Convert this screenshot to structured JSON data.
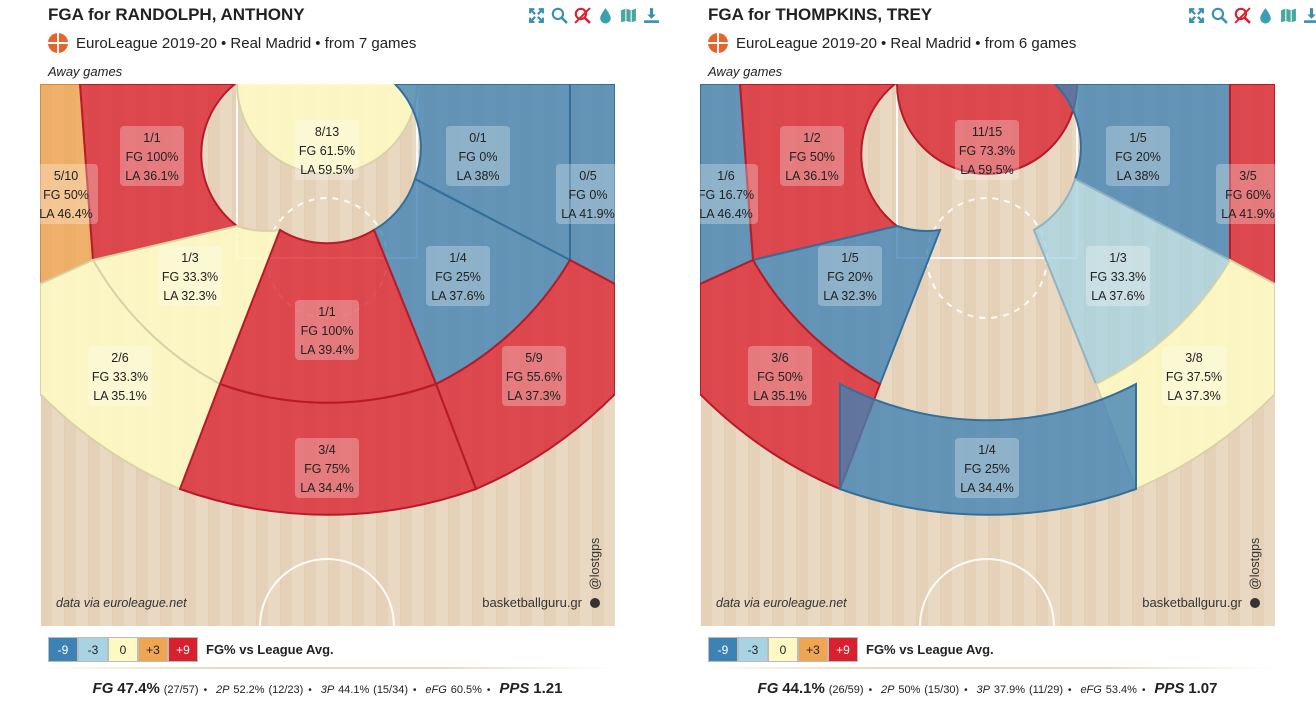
{
  "legend": {
    "items": [
      {
        "label": "-9",
        "color": "#3d82b5",
        "text_color": "#ffffff"
      },
      {
        "label": "-3",
        "color": "#a7d3e3",
        "text_color": "#222222"
      },
      {
        "label": "0",
        "color": "#fdf8c4",
        "text_color": "#222222"
      },
      {
        "label": "+3",
        "color": "#f0a552",
        "text_color": "#222222"
      },
      {
        "label": "+9",
        "color": "#d8202e",
        "text_color": "#ffffff"
      }
    ],
    "caption": "FG% vs League Avg."
  },
  "court_texts": {
    "source": "data via euroleague.net",
    "brand": "basketballguru.gr",
    "handle": "@lostgps"
  },
  "icons": [
    "fullscreen-icon",
    "search-icon",
    "no-search-icon",
    "drop-icon",
    "map-icon",
    "download-icon"
  ],
  "chart_data": [
    {
      "type": "heatmap",
      "title": "FGA for RANDOLPH, ANTHONY",
      "subtitle": {
        "competition": "EuroLeague 2019-20",
        "team": "Real Madrid",
        "games": "from 7 games"
      },
      "filter": "Away games",
      "zones": [
        {
          "id": "left-corner-3",
          "made_att": "5/10",
          "fg": "FG 50%",
          "la": "LA 46.4%",
          "color": "#f0a552"
        },
        {
          "id": "left-mid-upper",
          "made_att": "1/1",
          "fg": "FG 100%",
          "la": "LA 36.1%",
          "color": "#d8202e"
        },
        {
          "id": "restricted-area",
          "made_att": "8/13",
          "fg": "FG 61.5%",
          "la": "LA 59.5%",
          "color": "#fdf8c4"
        },
        {
          "id": "right-mid-upper",
          "made_att": "0/1",
          "fg": "FG 0%",
          "la": "LA 38%",
          "color": "#3d82b5"
        },
        {
          "id": "right-corner-3",
          "made_att": "0/5",
          "fg": "FG 0%",
          "la": "LA 41.9%",
          "color": "#3d82b5"
        },
        {
          "id": "left-mid-lower",
          "made_att": "1/3",
          "fg": "FG 33.3%",
          "la": "LA 32.3%",
          "color": "#fdf8c4"
        },
        {
          "id": "right-mid-lower",
          "made_att": "1/4",
          "fg": "FG 25%",
          "la": "LA 37.6%",
          "color": "#3d82b5"
        },
        {
          "id": "paint-mid",
          "made_att": "1/1",
          "fg": "FG 100%",
          "la": "LA 39.4%",
          "color": "#d8202e"
        },
        {
          "id": "left-wing-3",
          "made_att": "2/6",
          "fg": "FG 33.3%",
          "la": "LA 35.1%",
          "color": "#fdf8c4"
        },
        {
          "id": "right-wing-3",
          "made_att": "5/9",
          "fg": "FG 55.6%",
          "la": "LA 37.3%",
          "color": "#d8202e"
        },
        {
          "id": "top-3",
          "made_att": "3/4",
          "fg": "FG 75%",
          "la": "LA 34.4%",
          "color": "#d8202e"
        }
      ],
      "summary": {
        "fg": "47.4%",
        "fg_n": "(27/57)",
        "p2": "52.2%",
        "p2_n": "(12/23)",
        "p3": "44.1%",
        "p3_n": "(15/34)",
        "efg": "60.5%",
        "pps": "1.21"
      }
    },
    {
      "type": "heatmap",
      "title": "FGA for THOMPKINS, TREY",
      "subtitle": {
        "competition": "EuroLeague 2019-20",
        "team": "Real Madrid",
        "games": "from 6 games"
      },
      "filter": "Away games",
      "zones": [
        {
          "id": "left-corner-3",
          "made_att": "1/6",
          "fg": "FG 16.7%",
          "la": "LA 46.4%",
          "color": "#3d82b5"
        },
        {
          "id": "left-mid-upper",
          "made_att": "1/2",
          "fg": "FG 50%",
          "la": "LA 36.1%",
          "color": "#d8202e"
        },
        {
          "id": "restricted-area",
          "made_att": "11/15",
          "fg": "FG 73.3%",
          "la": "LA 59.5%",
          "color": "#d8202e"
        },
        {
          "id": "right-mid-upper",
          "made_att": "1/5",
          "fg": "FG 20%",
          "la": "LA 38%",
          "color": "#3d82b5"
        },
        {
          "id": "right-corner-3",
          "made_att": "3/5",
          "fg": "FG 60%",
          "la": "LA 41.9%",
          "color": "#d8202e"
        },
        {
          "id": "left-mid-lower",
          "made_att": "1/5",
          "fg": "FG 20%",
          "la": "LA 32.3%",
          "color": "#3d82b5"
        },
        {
          "id": "right-mid-lower",
          "made_att": "1/3",
          "fg": "FG 33.3%",
          "la": "LA 37.6%",
          "color": "#a7d3e3"
        },
        {
          "id": "left-wing-3",
          "made_att": "3/6",
          "fg": "FG 50%",
          "la": "LA 35.1%",
          "color": "#d8202e"
        },
        {
          "id": "right-wing-3",
          "made_att": "3/8",
          "fg": "FG 37.5%",
          "la": "LA 37.3%",
          "color": "#fdf8c4"
        },
        {
          "id": "top-3",
          "made_att": "1/4",
          "fg": "FG 25%",
          "la": "LA 34.4%",
          "color": "#3d82b5"
        }
      ],
      "summary": {
        "fg": "44.1%",
        "fg_n": "(26/59)",
        "p2": "50%",
        "p2_n": "(15/30)",
        "p3": "37.9%",
        "p3_n": "(11/29)",
        "efg": "53.4%",
        "pps": "1.07"
      }
    }
  ]
}
